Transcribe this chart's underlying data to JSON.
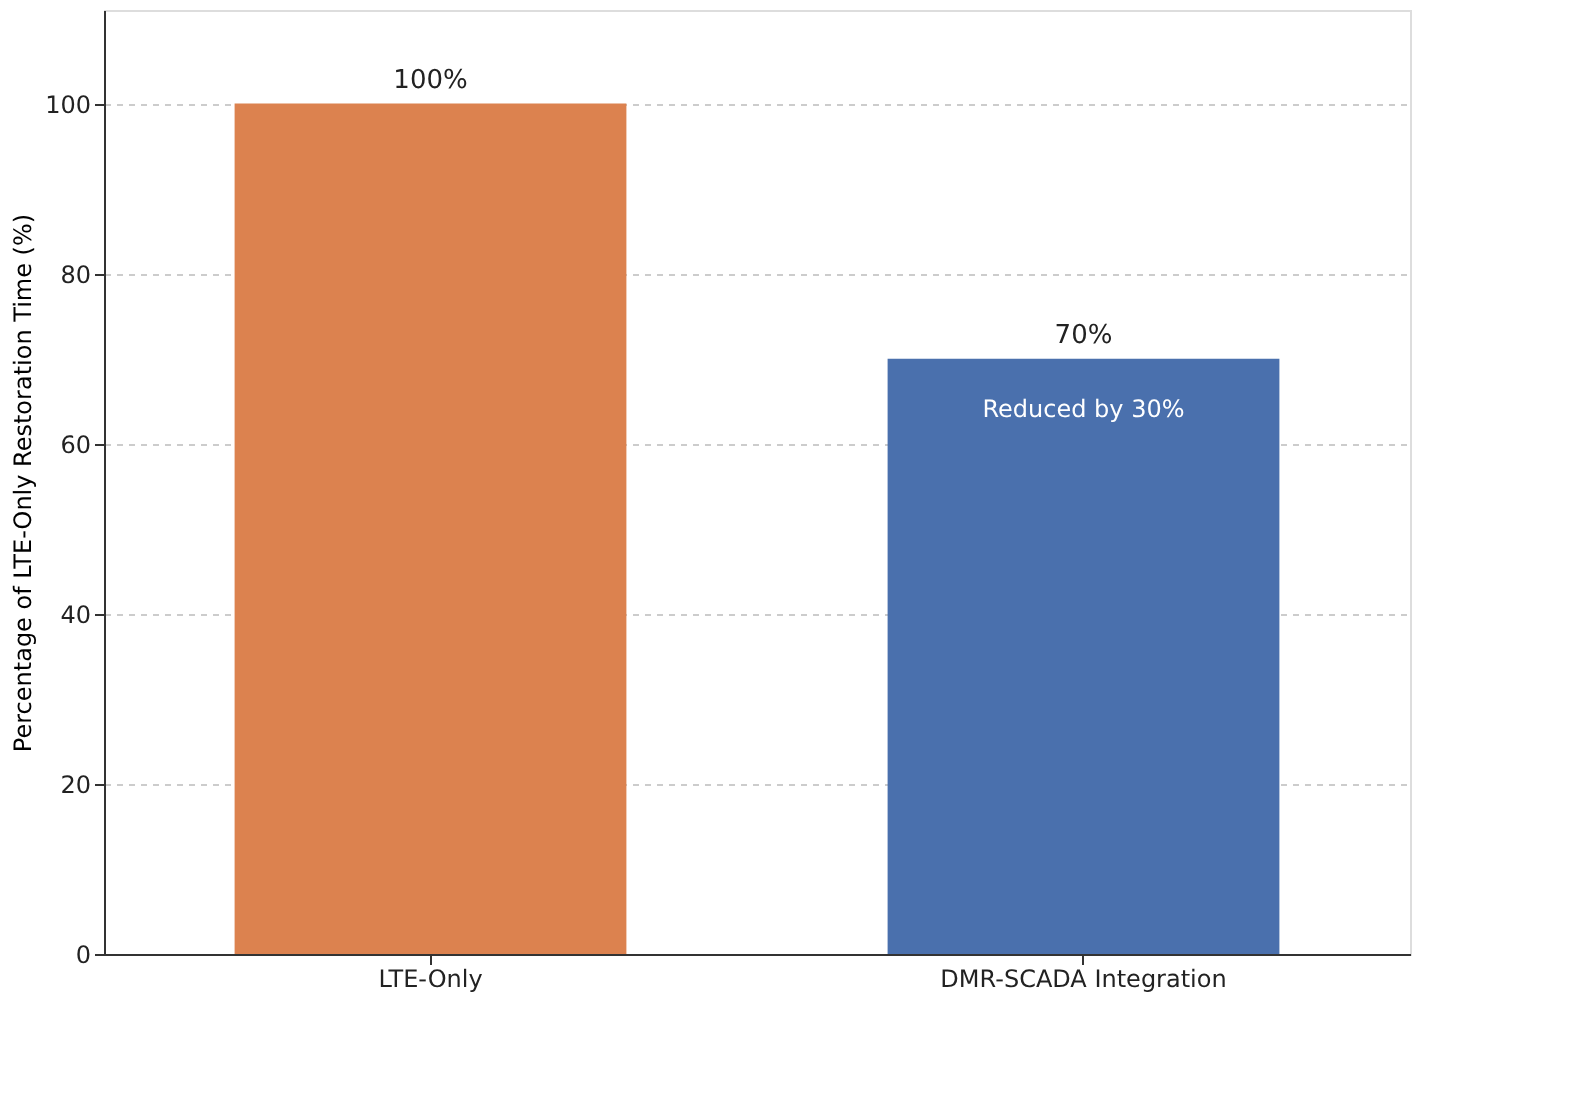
{
  "chart_data": {
    "type": "bar",
    "ylabel": "Percentage of LTE-Only Restoration Time (%)",
    "categories": [
      "LTE-Only",
      "DMR-SCADA Integration"
    ],
    "values": [
      100,
      70
    ],
    "colors": [
      "#dc824f",
      "#4a70ad"
    ],
    "value_labels": [
      "100%",
      "70%"
    ],
    "annotations": [
      "Reduced by 30%"
    ],
    "ylim": [
      0,
      111
    ],
    "yticks": [
      0,
      20,
      40,
      60,
      80,
      100
    ],
    "grid": "y",
    "legend": false
  }
}
